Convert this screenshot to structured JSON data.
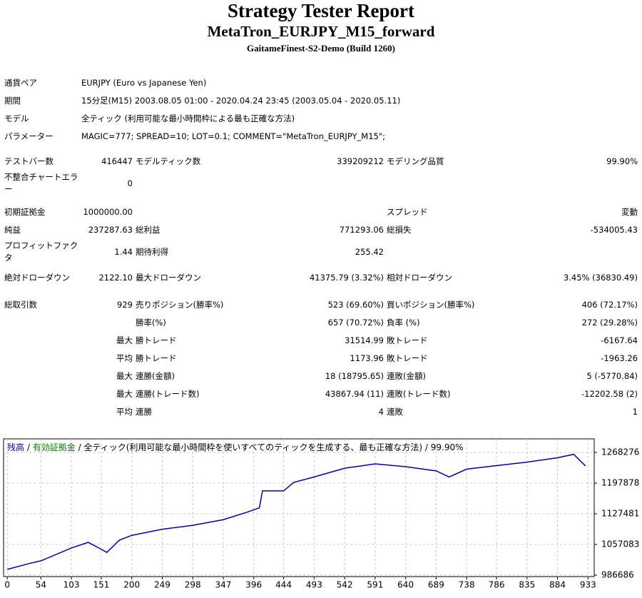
{
  "header": {
    "title": "Strategy Tester Report",
    "subtitle": "MetaTron_EURJPY_M15_forward",
    "server": "GaitameFinest-S2-Demo (Build 1260)"
  },
  "info": [
    {
      "label": "通貨ペア",
      "value": "EURJPY (Euro vs Japanese Yen)"
    },
    {
      "label": "期間",
      "value": "15分足(M15) 2003.08.05 01:00 - 2020.04.24 23:45 (2003.05.04 - 2020.05.11)"
    },
    {
      "label": "モデル",
      "value": "全ティック (利用可能な最小時間枠による最も正確な方法)"
    },
    {
      "label": "パラメーター",
      "value": "MAGIC=777; SPREAD=10; LOT=0.1; COMMENT=\"MetaTron_EURJPY_M15\";"
    }
  ],
  "stats": [
    [
      "テストバー数",
      "416447",
      "モデルティック数",
      "339209212",
      "モデリング品質",
      "99.90%"
    ],
    [
      "不整合チャートエラー",
      "0",
      null,
      null,
      null,
      null
    ],
    [
      "初期証拠金",
      "1000000.00",
      null,
      null,
      "スプレッド",
      "変動"
    ],
    [
      "純益",
      "237287.63",
      "総利益",
      "771293.06",
      "総損失",
      "-534005.43"
    ],
    [
      "プロフィットファクタ",
      "1.44",
      "期待利得",
      "255.42",
      null,
      null
    ],
    [
      "絶対ドローダウン",
      "2122.10",
      "最大ドローダウン",
      "41375.79 (3.32%)",
      "相対ドローダウン",
      "3.45% (36830.49)"
    ],
    [
      "総取引数",
      "929",
      "売りポジション(勝率%)",
      "523 (69.60%)",
      "買いポジション(勝率%)",
      "406 (72.17%)"
    ],
    [
      null,
      null,
      "勝率(%)",
      "657 (70.72%)",
      "負率 (%)",
      "272 (29.28%)"
    ],
    [
      null,
      "最大",
      "勝トレード",
      "31514.99",
      "敗トレード",
      "-6167.64"
    ],
    [
      null,
      "平均",
      "勝トレード",
      "1173.96",
      "敗トレード",
      "-1963.26"
    ],
    [
      null,
      "最大",
      "連勝(金額)",
      "18 (18795.65)",
      "連敗(金額)",
      "5 (-5770.84)"
    ],
    [
      null,
      "最大",
      "連勝(トレード数)",
      "43867.94 (11)",
      "連敗(トレード数)",
      "-12202.58 (2)"
    ],
    [
      null,
      "平均",
      "連勝",
      "4",
      "連敗",
      "1"
    ]
  ],
  "chart_data": {
    "type": "line",
    "legend": {
      "equity_label": "有効証拠金",
      "equity_color": "#008000",
      "separator": "/",
      "model": "全ティック(利用可能な最小時間枠を使いすべてのティックを生成する、最も正確な方法)",
      "quality": "99.90%"
    },
    "x": [
      0,
      34,
      54,
      103,
      130,
      151,
      160,
      180,
      200,
      249,
      298,
      347,
      385,
      405,
      410,
      444,
      460,
      493,
      542,
      591,
      640,
      689,
      710,
      738,
      786,
      835,
      884,
      910,
      929
    ],
    "series": [
      {
        "name": "残高",
        "color": "#0000aa",
        "values": [
          1000000,
          1013000,
          1019600,
          1049000,
          1062000,
          1046000,
          1039000,
          1067000,
          1078000,
          1092000,
          1101000,
          1114000,
          1131000,
          1141000,
          1180000,
          1180000,
          1199500,
          1212000,
          1232000,
          1242000,
          1235500,
          1226000,
          1212000,
          1230000,
          1238000,
          1246000,
          1256000,
          1264000,
          1237288
        ]
      }
    ],
    "xlim": [
      -6,
      943
    ],
    "ylim": [
      983412,
      1299380
    ],
    "xticks": [
      0,
      54,
      103,
      151,
      200,
      249,
      298,
      347,
      396,
      444,
      493,
      542,
      591,
      640,
      689,
      738,
      786,
      835,
      884,
      933
    ],
    "yticks": [
      986686,
      1057083,
      1127481,
      1197878,
      1268276
    ],
    "grid": true
  }
}
